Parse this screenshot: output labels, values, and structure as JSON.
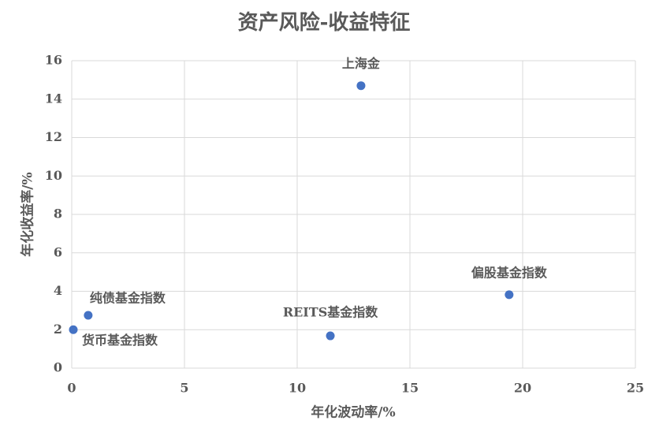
{
  "chart_data": {
    "type": "scatter",
    "title": "资产风险-收益特征",
    "xlabel": "年化波动率/%",
    "ylabel": "年化收益率/%",
    "point_labels": [
      "上海金",
      "偏股基金指数",
      "纯债基金指数",
      "货币基金指数",
      "REITS基金指数"
    ],
    "x": [
      12.83,
      19.4,
      0.73,
      0.07,
      11.47
    ],
    "values": [
      14.7,
      3.82,
      2.75,
      2.0,
      1.68
    ],
    "color": "#4472c4",
    "xlim": [
      0,
      25
    ],
    "xticks": [
      0,
      5,
      10,
      15,
      20,
      25
    ],
    "ylim": [
      0,
      16
    ],
    "yticks": [
      0,
      2,
      4,
      6,
      8,
      10,
      12,
      14,
      16
    ],
    "grid": true
  }
}
